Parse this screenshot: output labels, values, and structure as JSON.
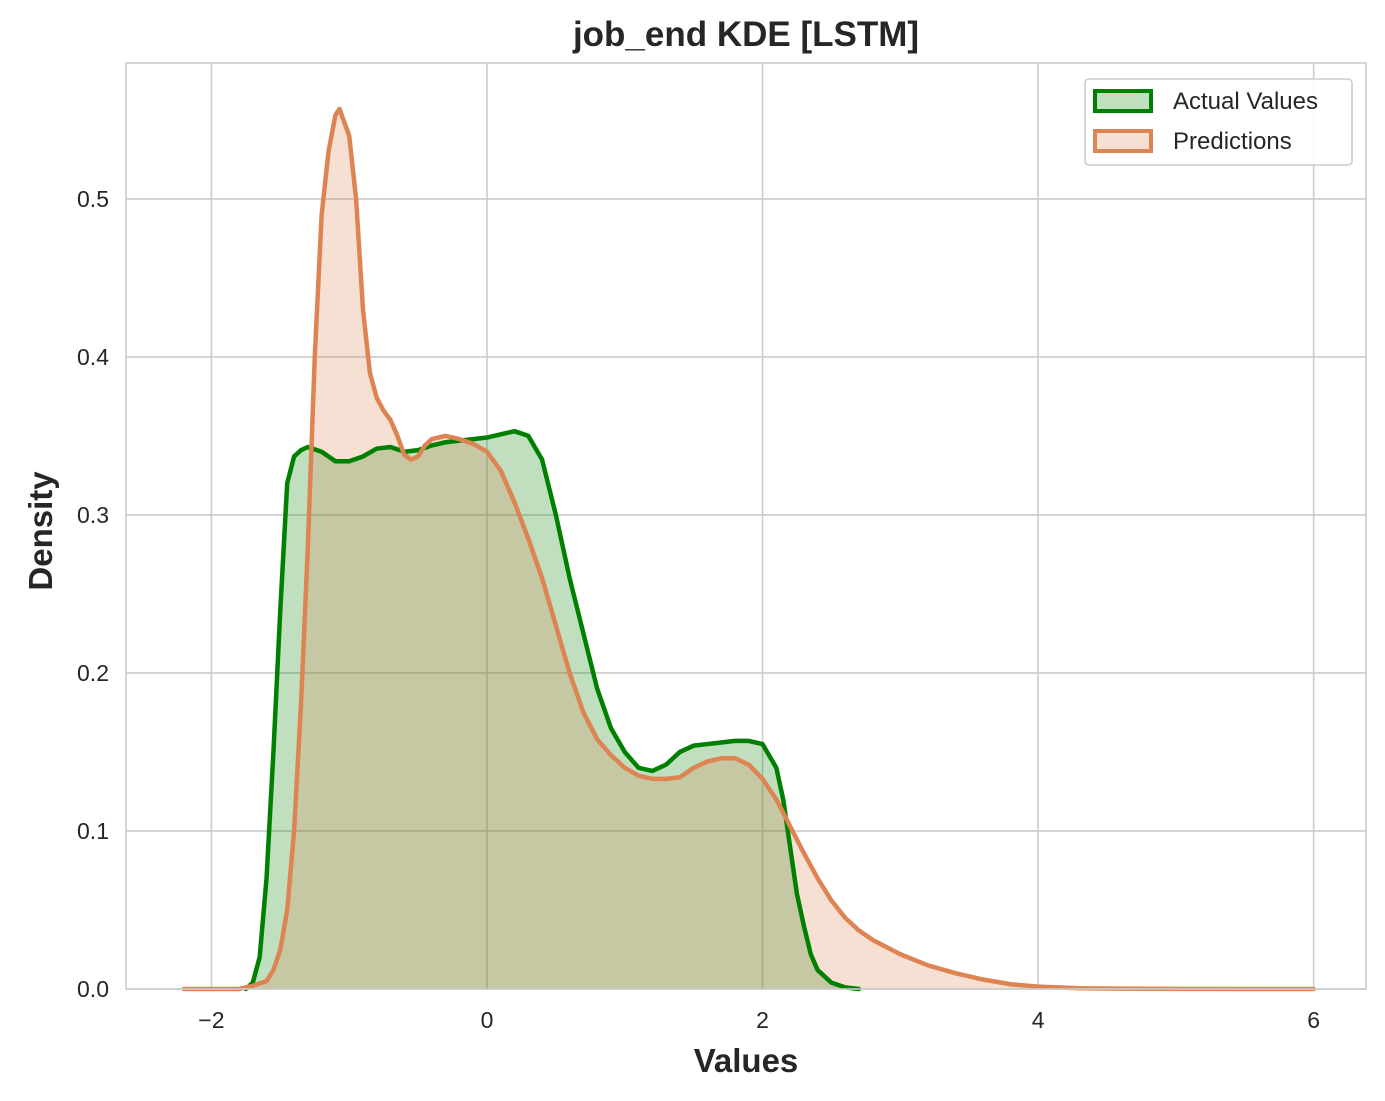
{
  "chart_data": {
    "type": "area",
    "title": "job_end KDE [LSTM]",
    "xlabel": "Values",
    "ylabel": "Density",
    "xlim": [
      -2.62,
      6.38
    ],
    "ylim": [
      0,
      0.586
    ],
    "xticks": [
      -2,
      0,
      2,
      4,
      6
    ],
    "xtick_labels": [
      "−2",
      "0",
      "2",
      "4",
      "6"
    ],
    "yticks": [
      0.0,
      0.1,
      0.2,
      0.3,
      0.4,
      0.5
    ],
    "ytick_labels": [
      "0.0",
      "0.1",
      "0.2",
      "0.3",
      "0.4",
      "0.5"
    ],
    "grid": true,
    "legend": "top-right",
    "series": [
      {
        "name": "Actual Values",
        "line_color": "#008000",
        "fill_color": "#008000",
        "fill_opacity": 0.25,
        "x": [
          -1.75,
          -1.7,
          -1.65,
          -1.6,
          -1.55,
          -1.5,
          -1.45,
          -1.4,
          -1.35,
          -1.3,
          -1.2,
          -1.1,
          -1.0,
          -0.9,
          -0.8,
          -0.7,
          -0.6,
          -0.5,
          -0.4,
          -0.3,
          -0.2,
          -0.1,
          0.0,
          0.1,
          0.2,
          0.3,
          0.4,
          0.5,
          0.6,
          0.7,
          0.8,
          0.9,
          1.0,
          1.1,
          1.2,
          1.3,
          1.4,
          1.5,
          1.6,
          1.7,
          1.8,
          1.9,
          2.0,
          2.1,
          2.15,
          2.2,
          2.25,
          2.3,
          2.35,
          2.4,
          2.5,
          2.6,
          2.7
        ],
        "y": [
          0.0,
          0.004,
          0.02,
          0.07,
          0.15,
          0.24,
          0.32,
          0.337,
          0.341,
          0.343,
          0.34,
          0.334,
          0.334,
          0.337,
          0.342,
          0.343,
          0.34,
          0.341,
          0.344,
          0.346,
          0.347,
          0.348,
          0.349,
          0.351,
          0.353,
          0.35,
          0.335,
          0.3,
          0.26,
          0.225,
          0.19,
          0.165,
          0.15,
          0.14,
          0.138,
          0.142,
          0.15,
          0.154,
          0.155,
          0.156,
          0.157,
          0.157,
          0.155,
          0.14,
          0.12,
          0.09,
          0.06,
          0.04,
          0.022,
          0.012,
          0.004,
          0.001,
          0.0
        ]
      },
      {
        "name": "Predictions",
        "line_color": "#dd8452",
        "fill_color": "#dd8452",
        "fill_opacity": 0.25,
        "x": [
          -2.2,
          -1.8,
          -1.7,
          -1.6,
          -1.55,
          -1.5,
          -1.45,
          -1.4,
          -1.35,
          -1.3,
          -1.25,
          -1.2,
          -1.15,
          -1.1,
          -1.07,
          -1.05,
          -1.0,
          -0.95,
          -0.9,
          -0.85,
          -0.8,
          -0.75,
          -0.7,
          -0.65,
          -0.6,
          -0.55,
          -0.5,
          -0.45,
          -0.4,
          -0.3,
          -0.2,
          -0.1,
          0.0,
          0.1,
          0.2,
          0.3,
          0.4,
          0.5,
          0.6,
          0.7,
          0.8,
          0.9,
          1.0,
          1.1,
          1.2,
          1.3,
          1.4,
          1.5,
          1.6,
          1.7,
          1.8,
          1.9,
          2.0,
          2.1,
          2.2,
          2.3,
          2.4,
          2.5,
          2.6,
          2.7,
          2.8,
          3.0,
          3.2,
          3.4,
          3.6,
          3.8,
          4.0,
          4.3,
          4.6,
          5.0,
          6.0
        ],
        "y": [
          0.0,
          0.0,
          0.002,
          0.005,
          0.012,
          0.025,
          0.05,
          0.1,
          0.18,
          0.28,
          0.4,
          0.49,
          0.53,
          0.553,
          0.557,
          0.552,
          0.54,
          0.5,
          0.43,
          0.39,
          0.374,
          0.366,
          0.36,
          0.35,
          0.338,
          0.335,
          0.337,
          0.344,
          0.348,
          0.35,
          0.348,
          0.345,
          0.34,
          0.328,
          0.308,
          0.285,
          0.26,
          0.23,
          0.2,
          0.175,
          0.158,
          0.148,
          0.14,
          0.135,
          0.133,
          0.133,
          0.134,
          0.14,
          0.144,
          0.146,
          0.146,
          0.142,
          0.133,
          0.12,
          0.103,
          0.086,
          0.07,
          0.056,
          0.045,
          0.037,
          0.031,
          0.022,
          0.015,
          0.01,
          0.006,
          0.003,
          0.0015,
          0.0005,
          0.0002,
          0.0001,
          0.0
        ]
      }
    ]
  }
}
